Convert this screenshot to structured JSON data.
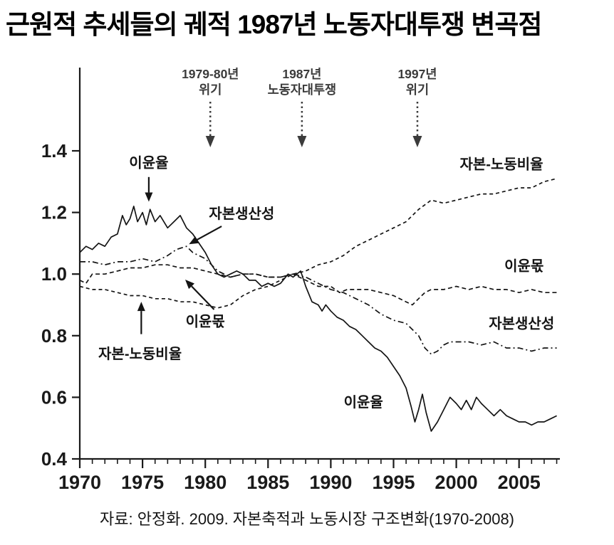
{
  "title": "근원적 추세들의 궤적 1987년 노동자대투쟁 변곡점",
  "caption": "자료: 안정화. 2009. 자본축적과 노동시장 구조변화(1970-2008)",
  "colors": {
    "line": "#141414",
    "axis": "#1a1a1a",
    "annotation": "#3b3b3b",
    "background": "#ffffff"
  },
  "chart_data": {
    "type": "line",
    "title": "근원적 추세들의 궤적 1987년 노동자대투쟁 변곡점",
    "xlabel": "",
    "ylabel": "",
    "xlim": [
      1970,
      2008.3
    ],
    "ylim": [
      0.4,
      1.67
    ],
    "grid": false,
    "legend_position": "inline-labels",
    "x_tick_labels": [
      "1970",
      "1975",
      "1980",
      "1985",
      "1990",
      "1995",
      "2000",
      "2005"
    ],
    "x_tick_values": [
      1970,
      1975,
      1980,
      1985,
      1990,
      1995,
      2000,
      2005
    ],
    "x_minor_tick_step": 1,
    "x_minor_tick_end": 2008,
    "y_tick_labels": [
      "0.4",
      "0.6",
      "0.8",
      "1.0",
      "1.2",
      "1.4"
    ],
    "y_tick_values": [
      0.4,
      0.6,
      0.8,
      1.0,
      1.2,
      1.4
    ],
    "series": [
      {
        "name": "이윤율",
        "id": "profit-rate",
        "style": "solid",
        "points": [
          [
            1970,
            1.07
          ],
          [
            1970.5,
            1.09
          ],
          [
            1971,
            1.08
          ],
          [
            1971.5,
            1.1
          ],
          [
            1972,
            1.09
          ],
          [
            1972.5,
            1.12
          ],
          [
            1973,
            1.13
          ],
          [
            1973.4,
            1.19
          ],
          [
            1973.7,
            1.16
          ],
          [
            1974,
            1.18
          ],
          [
            1974.3,
            1.22
          ],
          [
            1974.6,
            1.17
          ],
          [
            1975,
            1.2
          ],
          [
            1975.3,
            1.16
          ],
          [
            1975.6,
            1.21
          ],
          [
            1976,
            1.17
          ],
          [
            1976.4,
            1.19
          ],
          [
            1977,
            1.15
          ],
          [
            1977.5,
            1.17
          ],
          [
            1978,
            1.19
          ],
          [
            1978.5,
            1.15
          ],
          [
            1979,
            1.13
          ],
          [
            1979.5,
            1.1
          ],
          [
            1980,
            1.07
          ],
          [
            1980.5,
            1.03
          ],
          [
            1981,
            1.0
          ],
          [
            1981.5,
            0.99
          ],
          [
            1982,
            1.0
          ],
          [
            1982.5,
            1.01
          ],
          [
            1983,
            1.0
          ],
          [
            1983.5,
            0.98
          ],
          [
            1984,
            0.98
          ],
          [
            1984.5,
            0.96
          ],
          [
            1985,
            0.97
          ],
          [
            1985.5,
            0.96
          ],
          [
            1986,
            0.97
          ],
          [
            1986.6,
            1.0
          ],
          [
            1987,
            0.99
          ],
          [
            1987.6,
            1.01
          ],
          [
            1988,
            0.96
          ],
          [
            1988.5,
            0.91
          ],
          [
            1989,
            0.9
          ],
          [
            1989.3,
            0.88
          ],
          [
            1989.6,
            0.9
          ],
          [
            1990,
            0.88
          ],
          [
            1990.5,
            0.86
          ],
          [
            1991,
            0.85
          ],
          [
            1991.5,
            0.83
          ],
          [
            1992,
            0.82
          ],
          [
            1992.5,
            0.8
          ],
          [
            1993,
            0.78
          ],
          [
            1993.5,
            0.76
          ],
          [
            1994,
            0.75
          ],
          [
            1994.5,
            0.73
          ],
          [
            1995,
            0.7
          ],
          [
            1995.5,
            0.67
          ],
          [
            1996,
            0.63
          ],
          [
            1996.4,
            0.57
          ],
          [
            1996.7,
            0.52
          ],
          [
            1997,
            0.56
          ],
          [
            1997.3,
            0.61
          ],
          [
            1997.6,
            0.55
          ],
          [
            1998,
            0.49
          ],
          [
            1998.5,
            0.52
          ],
          [
            1999,
            0.56
          ],
          [
            1999.5,
            0.6
          ],
          [
            2000,
            0.58
          ],
          [
            2000.4,
            0.56
          ],
          [
            2000.8,
            0.59
          ],
          [
            2001.2,
            0.56
          ],
          [
            2001.6,
            0.6
          ],
          [
            2002,
            0.58
          ],
          [
            2002.5,
            0.56
          ],
          [
            2003,
            0.54
          ],
          [
            2003.5,
            0.56
          ],
          [
            2004,
            0.54
          ],
          [
            2004.5,
            0.53
          ],
          [
            2005,
            0.52
          ],
          [
            2005.5,
            0.52
          ],
          [
            2006,
            0.51
          ],
          [
            2006.5,
            0.52
          ],
          [
            2007,
            0.52
          ],
          [
            2007.5,
            0.53
          ],
          [
            2008,
            0.54
          ]
        ]
      },
      {
        "name": "자본생산성",
        "id": "capital-productivity",
        "style": "dashdot",
        "points": [
          [
            1970,
            1.04
          ],
          [
            1971,
            1.04
          ],
          [
            1972,
            1.03
          ],
          [
            1973,
            1.04
          ],
          [
            1974,
            1.04
          ],
          [
            1975,
            1.05
          ],
          [
            1976,
            1.04
          ],
          [
            1977,
            1.06
          ],
          [
            1977.7,
            1.08
          ],
          [
            1978.5,
            1.09
          ],
          [
            1979,
            1.07
          ],
          [
            1980,
            1.05
          ],
          [
            1980.5,
            1.03
          ],
          [
            1981,
            1.01
          ],
          [
            1982,
            0.99
          ],
          [
            1983,
            1.0
          ],
          [
            1984,
            1.0
          ],
          [
            1985,
            0.99
          ],
          [
            1986,
            0.99
          ],
          [
            1987,
            1.0
          ],
          [
            1988,
            0.99
          ],
          [
            1989,
            0.97
          ],
          [
            1990,
            0.95
          ],
          [
            1991,
            0.94
          ],
          [
            1992,
            0.92
          ],
          [
            1993,
            0.9
          ],
          [
            1994,
            0.87
          ],
          [
            1995,
            0.85
          ],
          [
            1996,
            0.84
          ],
          [
            1996.5,
            0.82
          ],
          [
            1997,
            0.8
          ],
          [
            1997.5,
            0.76
          ],
          [
            1998,
            0.74
          ],
          [
            1998.5,
            0.75
          ],
          [
            1999,
            0.77
          ],
          [
            1999.5,
            0.78
          ],
          [
            2000,
            0.78
          ],
          [
            2001,
            0.78
          ],
          [
            2002,
            0.77
          ],
          [
            2003,
            0.78
          ],
          [
            2004,
            0.76
          ],
          [
            2005,
            0.76
          ],
          [
            2006,
            0.75
          ],
          [
            2007,
            0.76
          ],
          [
            2008,
            0.76
          ]
        ]
      },
      {
        "name": "이윤몫",
        "id": "profit-share",
        "style": "dashed",
        "points": [
          [
            1970,
            0.98
          ],
          [
            1970.5,
            0.97
          ],
          [
            1971,
            1.0
          ],
          [
            1972,
            1.0
          ],
          [
            1973,
            1.01
          ],
          [
            1974,
            1.02
          ],
          [
            1975,
            1.02
          ],
          [
            1976,
            1.03
          ],
          [
            1977,
            1.03
          ],
          [
            1978,
            1.02
          ],
          [
            1979,
            1.02
          ],
          [
            1980,
            1.01
          ],
          [
            1981,
            1.0
          ],
          [
            1982,
            0.99
          ],
          [
            1983,
            1.0
          ],
          [
            1984,
            1.0
          ],
          [
            1985,
            0.99
          ],
          [
            1986,
            0.99
          ],
          [
            1987,
            1.0
          ],
          [
            1988,
            0.98
          ],
          [
            1989,
            0.96
          ],
          [
            1990,
            0.96
          ],
          [
            1990.7,
            0.94
          ],
          [
            1991.3,
            0.95
          ],
          [
            1992,
            0.95
          ],
          [
            1993,
            0.95
          ],
          [
            1994,
            0.94
          ],
          [
            1995,
            0.93
          ],
          [
            1996,
            0.91
          ],
          [
            1996.5,
            0.9
          ],
          [
            1997,
            0.92
          ],
          [
            1997.5,
            0.94
          ],
          [
            1998,
            0.95
          ],
          [
            1999,
            0.95
          ],
          [
            2000,
            0.96
          ],
          [
            2001,
            0.95
          ],
          [
            2002,
            0.96
          ],
          [
            2003,
            0.95
          ],
          [
            2004,
            0.95
          ],
          [
            2005,
            0.94
          ],
          [
            2006,
            0.95
          ],
          [
            2007,
            0.94
          ],
          [
            2008,
            0.94
          ]
        ]
      },
      {
        "name": "자본-노동비율",
        "id": "capital-labor-ratio",
        "style": "dashed2",
        "points": [
          [
            1970,
            0.96
          ],
          [
            1971,
            0.95
          ],
          [
            1972,
            0.95
          ],
          [
            1973,
            0.94
          ],
          [
            1974,
            0.93
          ],
          [
            1975,
            0.93
          ],
          [
            1976,
            0.92
          ],
          [
            1977,
            0.92
          ],
          [
            1978,
            0.91
          ],
          [
            1979,
            0.91
          ],
          [
            1980,
            0.9
          ],
          [
            1981,
            0.89
          ],
          [
            1982,
            0.9
          ],
          [
            1983,
            0.93
          ],
          [
            1984,
            0.95
          ],
          [
            1985,
            0.96
          ],
          [
            1986,
            0.98
          ],
          [
            1987,
            1.0
          ],
          [
            1988,
            1.01
          ],
          [
            1989,
            1.03
          ],
          [
            1990,
            1.04
          ],
          [
            1991,
            1.06
          ],
          [
            1992,
            1.09
          ],
          [
            1993,
            1.11
          ],
          [
            1994,
            1.13
          ],
          [
            1995,
            1.15
          ],
          [
            1996,
            1.17
          ],
          [
            1997,
            1.21
          ],
          [
            1998,
            1.24
          ],
          [
            1999,
            1.23
          ],
          [
            2000,
            1.24
          ],
          [
            2001,
            1.25
          ],
          [
            2002,
            1.26
          ],
          [
            2003,
            1.26
          ],
          [
            2004,
            1.27
          ],
          [
            2005,
            1.28
          ],
          [
            2006,
            1.28
          ],
          [
            2007,
            1.3
          ],
          [
            2008,
            1.31
          ]
        ]
      }
    ],
    "inline_labels": [
      {
        "id": "profit-rate-left",
        "text": "이윤율",
        "x": 1975.5,
        "y": 1.36,
        "arrow": [
          [
            1975.5,
            1.315
          ],
          [
            1975.5,
            1.235
          ]
        ]
      },
      {
        "id": "capital-productivity-left",
        "text": "자본생산성",
        "x": 1982.9,
        "y": 1.195,
        "arrow": [
          [
            1981.3,
            1.155
          ],
          [
            1978.7,
            1.097
          ]
        ]
      },
      {
        "id": "profit-share-left",
        "text": "이윤몫",
        "x": 1980.0,
        "y": 0.845,
        "arrow": [
          [
            1980.7,
            0.885
          ],
          [
            1978.4,
            0.982
          ]
        ]
      },
      {
        "id": "capital-labor-left",
        "text": "자본-노동비율",
        "x": 1974.8,
        "y": 0.74,
        "arrow": [
          [
            1974.9,
            0.805
          ],
          [
            1974.9,
            0.91
          ]
        ]
      },
      {
        "id": "capital-labor-right",
        "text": "자본-노동비율",
        "x": 2003.6,
        "y": 1.355
      },
      {
        "id": "profit-share-right",
        "text": "이윤몫",
        "x": 2005.4,
        "y": 1.025
      },
      {
        "id": "capital-productivity-right",
        "text": "자본생산성",
        "x": 2005.2,
        "y": 0.838
      },
      {
        "id": "profit-rate-right",
        "text": "이윤율",
        "x": 1992.6,
        "y": 0.582
      }
    ],
    "annotations": [
      {
        "id": "crisis-1979-80",
        "lines": [
          "1979-80년",
          "위기"
        ],
        "x": 1980.4
      },
      {
        "id": "labor-struggle-1987",
        "lines": [
          "1987년",
          "노동자대투쟁"
        ],
        "x": 1987.7
      },
      {
        "id": "crisis-1997",
        "lines": [
          "1997년",
          "위기"
        ],
        "x": 1996.9
      }
    ]
  }
}
